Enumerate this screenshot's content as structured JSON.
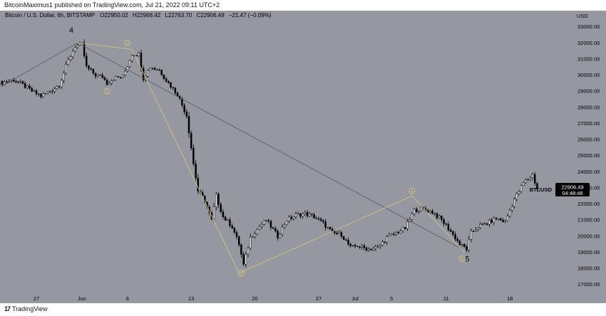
{
  "header": {
    "published_line": "BitcoinMaximus1 published on TradingView.com, Jul 21, 2022 09:11 UTC+2"
  },
  "footer": {
    "logo_text": "TradingView"
  },
  "colors": {
    "chart_bg": "#9598a1",
    "candle_up": "#ffffff",
    "candle_down": "#000000",
    "wave_gold": "#d4c17a",
    "trend_line": "#5d606b",
    "price_tag_bg": "#000000"
  },
  "chart_data": {
    "type": "candlestick",
    "title": "Bitcoin / U.S. Dollar, 6h, BITSTAMP",
    "ohlc_readout": {
      "o": "22950.02",
      "h": "22968.42",
      "l": "22763.70",
      "c": "22906.49",
      "change": "−21.47 (−0.09%)"
    },
    "y_axis": {
      "unit": "USD",
      "ylim": [
        16500,
        34000
      ],
      "ticks": [
        17000,
        18000,
        19000,
        20000,
        21000,
        22000,
        23000,
        24000,
        25000,
        26000,
        27000,
        28000,
        29000,
        30000,
        31000,
        32000,
        33000
      ]
    },
    "x_axis": {
      "ticks": [
        {
          "label": "27",
          "date": "2022-05-27"
        },
        {
          "label": "Jun",
          "date": "2022-06-01"
        },
        {
          "label": "6",
          "date": "2022-06-06"
        },
        {
          "label": "13",
          "date": "2022-06-13"
        },
        {
          "label": "20",
          "date": "2022-06-20"
        },
        {
          "label": "27",
          "date": "2022-06-27"
        },
        {
          "label": "Jul",
          "date": "2022-07-01"
        },
        {
          "label": "5",
          "date": "2022-07-05"
        },
        {
          "label": "11",
          "date": "2022-07-11"
        },
        {
          "label": "18",
          "date": "2022-07-18"
        }
      ],
      "xlim": [
        "2022-05-23T00:00",
        "2022-07-23T00:00"
      ]
    },
    "price_tag": {
      "symbol": "BTCUSD",
      "price": "22906.49",
      "countdown": "04:48:48",
      "value": 22906.49
    },
    "path_points": [
      {
        "date": "2022-05-23T00:00",
        "close": 29500
      },
      {
        "date": "2022-05-24T12:00",
        "close": 29700
      },
      {
        "date": "2022-05-25T12:00",
        "close": 29400
      },
      {
        "date": "2022-05-26T12:00",
        "close": 29000
      },
      {
        "date": "2022-05-27T12:00",
        "close": 28700
      },
      {
        "date": "2022-05-28T12:00",
        "close": 29000
      },
      {
        "date": "2022-05-29T12:00",
        "close": 29400
      },
      {
        "date": "2022-05-30T12:00",
        "close": 30900
      },
      {
        "date": "2022-05-31T06:00",
        "close": 31800
      },
      {
        "date": "2022-06-01T00:00",
        "close": 31900
      },
      {
        "date": "2022-06-01T12:00",
        "close": 30500
      },
      {
        "date": "2022-06-02T12:00",
        "close": 30000
      },
      {
        "date": "2022-06-03T06:00",
        "close": 29900
      },
      {
        "date": "2022-06-03T18:00",
        "close": 29500
      },
      {
        "date": "2022-06-04T12:00",
        "close": 29800
      },
      {
        "date": "2022-06-05T12:00",
        "close": 29900
      },
      {
        "date": "2022-06-06T12:00",
        "close": 31300
      },
      {
        "date": "2022-06-07T06:00",
        "close": 31300
      },
      {
        "date": "2022-06-07T18:00",
        "close": 29800
      },
      {
        "date": "2022-06-08T12:00",
        "close": 30500
      },
      {
        "date": "2022-06-09T12:00",
        "close": 30300
      },
      {
        "date": "2022-06-10T12:00",
        "close": 29500
      },
      {
        "date": "2022-06-11T12:00",
        "close": 28800
      },
      {
        "date": "2022-06-12T12:00",
        "close": 27500
      },
      {
        "date": "2022-06-13T06:00",
        "close": 24500
      },
      {
        "date": "2022-06-13T18:00",
        "close": 22800
      },
      {
        "date": "2022-06-14T12:00",
        "close": 22200
      },
      {
        "date": "2022-06-15T06:00",
        "close": 21000
      },
      {
        "date": "2022-06-15T18:00",
        "close": 22500
      },
      {
        "date": "2022-06-16T12:00",
        "close": 21200
      },
      {
        "date": "2022-06-17T12:00",
        "close": 20600
      },
      {
        "date": "2022-06-18T06:00",
        "close": 19500
      },
      {
        "date": "2022-06-18T18:00",
        "close": 18200
      },
      {
        "date": "2022-06-19T12:00",
        "close": 19900
      },
      {
        "date": "2022-06-20T12:00",
        "close": 20600
      },
      {
        "date": "2022-06-21T06:00",
        "close": 21000
      },
      {
        "date": "2022-06-21T18:00",
        "close": 20600
      },
      {
        "date": "2022-06-22T12:00",
        "close": 20000
      },
      {
        "date": "2022-06-23T12:00",
        "close": 21000
      },
      {
        "date": "2022-06-24T12:00",
        "close": 21300
      },
      {
        "date": "2022-06-25T12:00",
        "close": 21400
      },
      {
        "date": "2022-06-26T12:00",
        "close": 21200
      },
      {
        "date": "2022-06-27T12:00",
        "close": 20800
      },
      {
        "date": "2022-06-28T12:00",
        "close": 20200
      },
      {
        "date": "2022-06-29T12:00",
        "close": 20100
      },
      {
        "date": "2022-06-30T12:00",
        "close": 19300
      },
      {
        "date": "2022-07-01T06:00",
        "close": 19400
      },
      {
        "date": "2022-07-01T18:00",
        "close": 19300
      },
      {
        "date": "2022-07-02T12:00",
        "close": 19200
      },
      {
        "date": "2022-07-03T12:00",
        "close": 19300
      },
      {
        "date": "2022-07-04T12:00",
        "close": 19900
      },
      {
        "date": "2022-07-05T12:00",
        "close": 20200
      },
      {
        "date": "2022-07-06T12:00",
        "close": 20500
      },
      {
        "date": "2022-07-07T12:00",
        "close": 21600
      },
      {
        "date": "2022-07-08T06:00",
        "close": 21700
      },
      {
        "date": "2022-07-08T18:00",
        "close": 21600
      },
      {
        "date": "2022-07-09T12:00",
        "close": 21500
      },
      {
        "date": "2022-07-10T12:00",
        "close": 21000
      },
      {
        "date": "2022-07-11T12:00",
        "close": 20300
      },
      {
        "date": "2022-07-12T12:00",
        "close": 19500
      },
      {
        "date": "2022-07-13T06:00",
        "close": 19200
      },
      {
        "date": "2022-07-13T18:00",
        "close": 20200
      },
      {
        "date": "2022-07-14T12:00",
        "close": 20600
      },
      {
        "date": "2022-07-15T12:00",
        "close": 20800
      },
      {
        "date": "2022-07-16T12:00",
        "close": 21100
      },
      {
        "date": "2022-07-17T12:00",
        "close": 20900
      },
      {
        "date": "2022-07-18T12:00",
        "close": 22300
      },
      {
        "date": "2022-07-19T12:00",
        "close": 23300
      },
      {
        "date": "2022-07-20T12:00",
        "close": 23800
      },
      {
        "date": "2022-07-21T00:00",
        "close": 22906.49
      }
    ],
    "wave_count_thin": [
      {
        "date": "2022-05-23T18:00",
        "price": 29500
      },
      {
        "date": "2022-05-31T12:00",
        "price": 32000
      },
      {
        "date": "2022-07-12T18:00",
        "price": 19200
      }
    ],
    "wave_count_gold": [
      {
        "label": "2",
        "date": "2022-06-06T12:00",
        "price": 31600
      },
      {
        "label": "3",
        "date": "2022-06-18T06:00",
        "price": 17700
      },
      {
        "label": "4",
        "date": "2022-07-07T06:00",
        "price": 22500
      },
      {
        "label": "5",
        "date": "2022-07-13T00:00",
        "price": 19000
      }
    ],
    "annotations": [
      {
        "text": "4",
        "style": "plain",
        "date": "2022-05-30T18:00",
        "price": 32800
      },
      {
        "text": "1",
        "style": "circled",
        "date": "2022-06-03T18:00",
        "price": 29000
      },
      {
        "text": "2",
        "style": "circled",
        "date": "2022-06-06T00:00",
        "price": 32000
      },
      {
        "text": "3",
        "style": "circled",
        "date": "2022-06-18T12:00",
        "price": 17700
      },
      {
        "text": "4",
        "style": "circled",
        "date": "2022-07-07T06:00",
        "price": 22800
      },
      {
        "text": "5",
        "style": "circled",
        "date": "2022-07-12T18:00",
        "price": 18600
      },
      {
        "text": "5",
        "style": "plain",
        "date": "2022-07-13T06:00",
        "price": 18600
      }
    ]
  }
}
